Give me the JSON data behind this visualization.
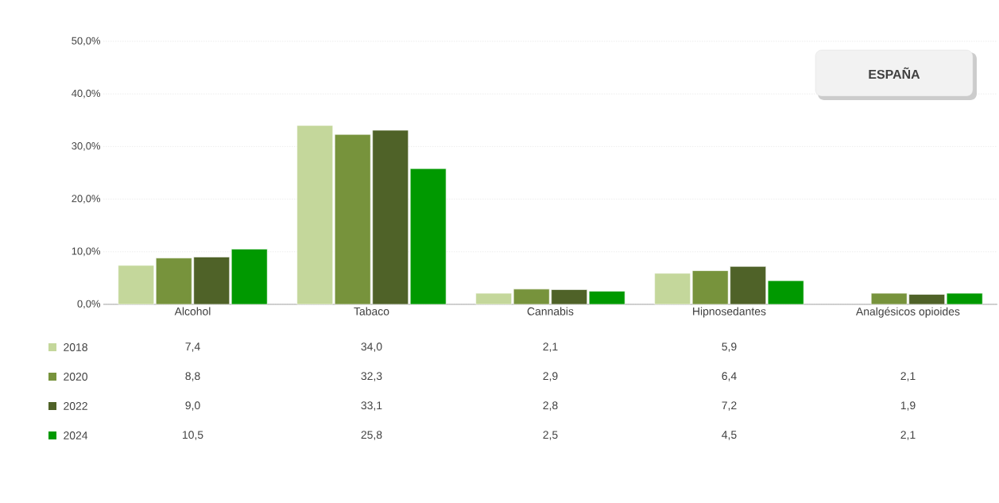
{
  "chart_data": {
    "type": "bar",
    "categories": [
      "Alcohol",
      "Tabaco",
      "Cannabis",
      "Hipnosedantes",
      "Analgésicos opioides"
    ],
    "series": [
      {
        "name": "2018",
        "color": "#c4d79b",
        "values": [
          7.4,
          34.0,
          2.1,
          5.9,
          null
        ],
        "value_labels": [
          "7,4",
          "34,0",
          "2,1",
          "5,9",
          null
        ]
      },
      {
        "name": "2020",
        "color": "#77933c",
        "values": [
          8.8,
          32.3,
          2.9,
          6.4,
          2.1
        ],
        "value_labels": [
          "8,8",
          "32,3",
          "2,9",
          "6,4",
          "2,1"
        ]
      },
      {
        "name": "2022",
        "color": "#4f6228",
        "values": [
          9.0,
          33.1,
          2.8,
          7.2,
          1.9
        ],
        "value_labels": [
          "9,0",
          "33,1",
          "2,8",
          "7,2",
          "1,9"
        ]
      },
      {
        "name": "2024",
        "color": "#009900",
        "values": [
          10.5,
          25.8,
          2.5,
          4.5,
          2.1
        ],
        "value_labels": [
          "10,5",
          "25,8",
          "2,5",
          "4,5",
          "2,1"
        ]
      }
    ],
    "ylim": [
      0,
      50
    ],
    "yticks": [
      {
        "value": 0,
        "label": "0,0%"
      },
      {
        "value": 10,
        "label": "10,0%"
      },
      {
        "value": 20,
        "label": "20,0%"
      },
      {
        "value": 30,
        "label": "30,0%"
      },
      {
        "value": 40,
        "label": "40,0%"
      },
      {
        "value": 50,
        "label": "50,0%"
      }
    ],
    "grid": "y",
    "legend": "bottom",
    "annotations": [
      "ESPAÑA"
    ]
  }
}
